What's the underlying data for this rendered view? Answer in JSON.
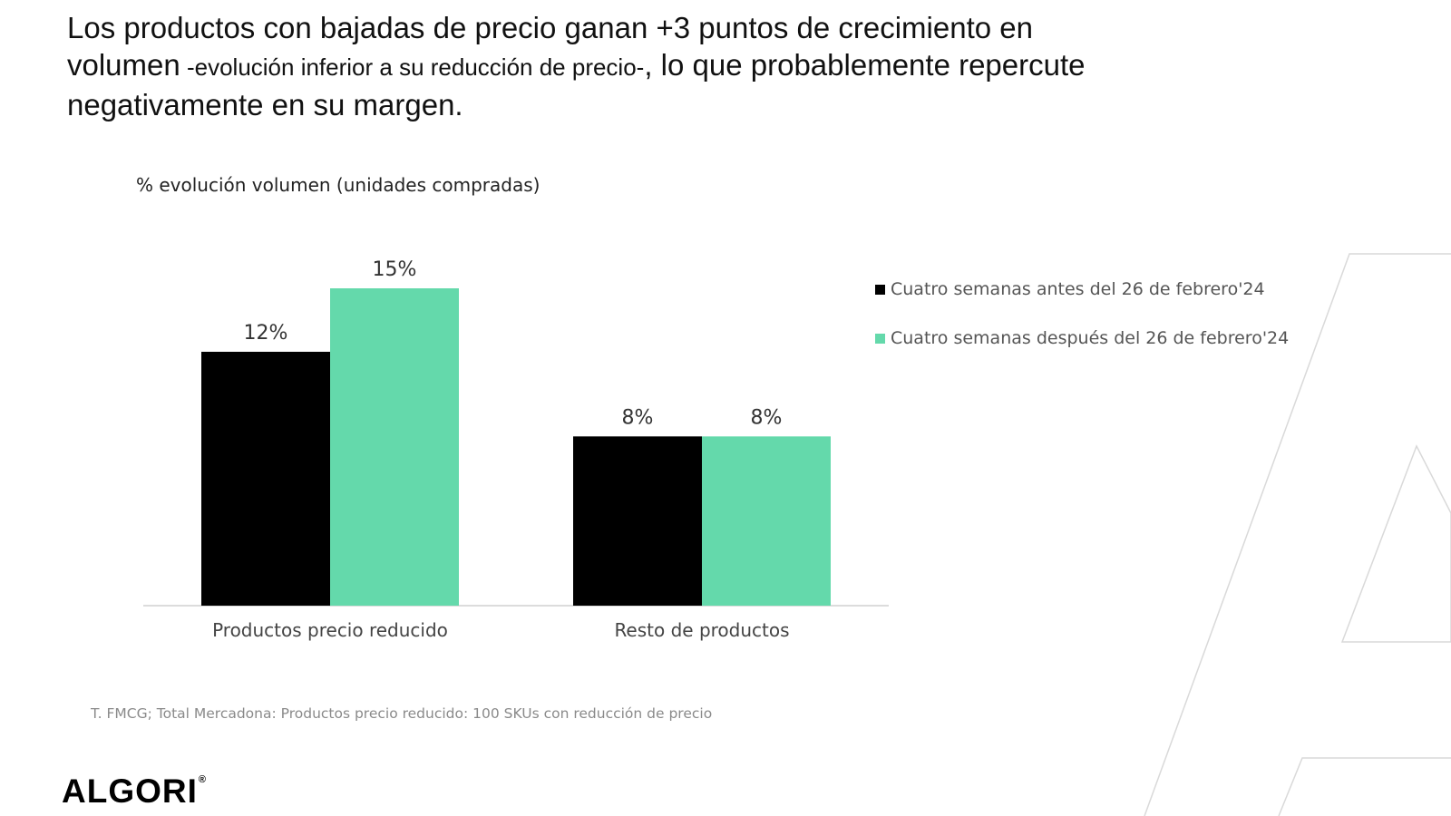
{
  "headline": {
    "part1": "Los productos con bajadas de precio ganan +3 puntos de crecimiento en volumen",
    "part2": " -evolución inferior a su reducción de precio-",
    "part3": ", lo que probablemente repercute negativamente en su margen."
  },
  "chart_data": {
    "type": "bar",
    "title": "% evolución volumen (unidades compradas)",
    "categories": [
      "Productos precio reducido",
      "Resto de productos"
    ],
    "series": [
      {
        "name": "Cuatro semanas antes del 26 de febrero'24",
        "values": [
          12,
          8
        ],
        "labels": [
          "12%",
          "8%"
        ],
        "color": "#000000"
      },
      {
        "name": "Cuatro semanas después del 26 de febrero'24",
        "values": [
          15,
          8
        ],
        "labels": [
          "15%",
          "8%"
        ],
        "color": "#64D9AB"
      }
    ],
    "ylim": [
      0,
      18
    ],
    "grid": false,
    "legend_position": "right"
  },
  "source": "T. FMCG; Total Mercadona: Productos precio reducido: 100 SKUs con reducción de precio",
  "logo": {
    "text": "ALGORI",
    "mark": "®"
  },
  "colors": {
    "accent": "#64D9AB",
    "primary": "#000000",
    "decoration": "#d8d8d8"
  }
}
